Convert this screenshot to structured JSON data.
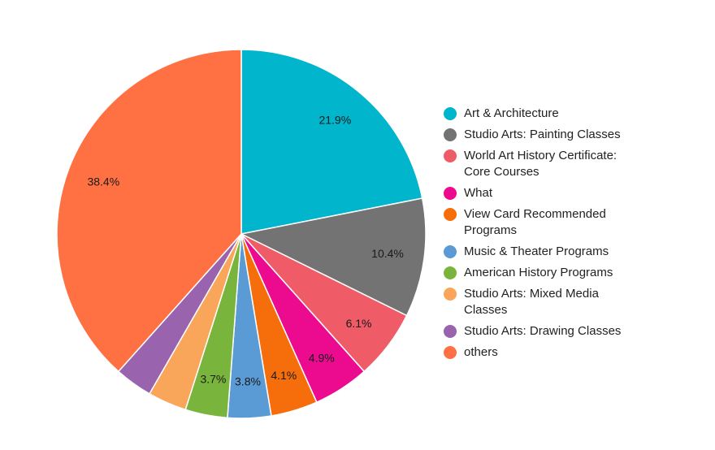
{
  "chart_data": {
    "type": "pie",
    "slices": [
      {
        "label": "Art & Architecture",
        "value": 21.9,
        "display": "21.9%",
        "color": "#00b5cc"
      },
      {
        "label": "Studio Arts: Painting Classes",
        "value": 10.4,
        "display": "10.4%",
        "color": "#737373"
      },
      {
        "label": "World Art History Certificate: Core Courses",
        "value": 6.1,
        "display": "6.1%",
        "color": "#ef5b67"
      },
      {
        "label": "What",
        "value": 4.9,
        "display": "4.9%",
        "color": "#ec0b8f"
      },
      {
        "label": "View Card Recommended Programs",
        "value": 4.1,
        "display": "4.1%",
        "color": "#f56e0b"
      },
      {
        "label": "Music & Theater Programs",
        "value": 3.8,
        "display": "3.8%",
        "color": "#5b9bd5"
      },
      {
        "label": "American History Programs",
        "value": 3.7,
        "display": "3.7%",
        "color": "#79b53d"
      },
      {
        "label": "Studio Arts: Mixed Media Classes",
        "value": 3.4,
        "display": "",
        "color": "#f9a65a"
      },
      {
        "label": "Studio Arts: Drawing Classes",
        "value": 3.3,
        "display": "",
        "color": "#9a63ad"
      },
      {
        "label": "others",
        "value": 38.4,
        "display": "38.4%",
        "color": "#ff7043"
      }
    ],
    "legend_position": "right"
  }
}
